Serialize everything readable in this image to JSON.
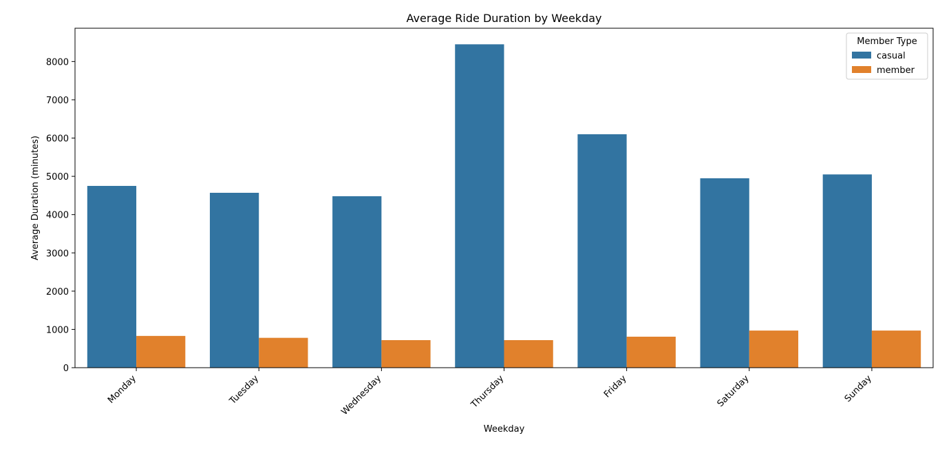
{
  "chart_data": {
    "type": "bar",
    "title": "Average Ride Duration by Weekday",
    "xlabel": "Weekday",
    "ylabel": "Average Duration (minutes)",
    "categories": [
      "Monday",
      "Tuesday",
      "Wednesday",
      "Thursday",
      "Friday",
      "Saturday",
      "Sunday"
    ],
    "series": [
      {
        "name": "casual",
        "color": "#3274a1",
        "values": [
          4750,
          4570,
          4480,
          8450,
          6100,
          4950,
          5050
        ]
      },
      {
        "name": "member",
        "color": "#e1812c",
        "values": [
          830,
          780,
          720,
          720,
          810,
          970,
          970
        ]
      }
    ],
    "ylim": [
      0,
      8870
    ],
    "yticks": [
      0,
      1000,
      2000,
      3000,
      4000,
      5000,
      6000,
      7000,
      8000
    ],
    "legend": {
      "title": "Member Type",
      "placement": "top-right"
    },
    "grid": false
  }
}
